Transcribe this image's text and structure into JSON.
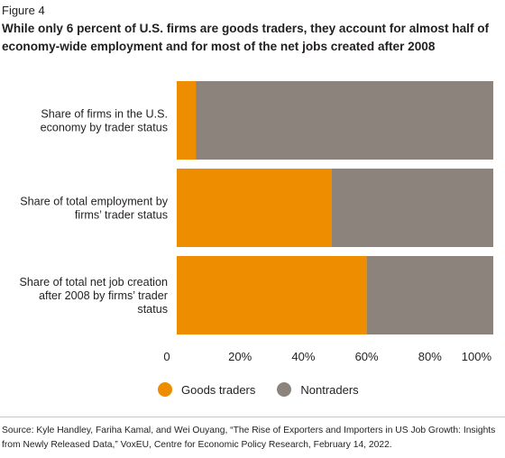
{
  "figure_label": "Figure 4",
  "title": "While only 6 percent of U.S. firms are goods traders, they account for almost half of economy-wide employment and for most of the net jobs created after 2008",
  "source": "Source: Kyle Handley, Fariha Kamal, and Wei Ouyang, “The Rise of Exporters and Importers in US Job Growth: Insights from Newly Released Data,” VoxEU, Centre for Economic Policy Research, February 14, 2022.",
  "colors": {
    "goods_traders": "#ee8d00",
    "nontraders": "#8c837d"
  },
  "chart_data": {
    "type": "bar",
    "orientation": "horizontal",
    "stacked": true,
    "categories": [
      [
        "Share of firms in the U.S.",
        "economy by trader status"
      ],
      [
        "Share of total employment by",
        "firms’ trader status"
      ],
      [
        "Share of total net job creation",
        "after 2008 by firms’ trader",
        "status"
      ]
    ],
    "series": [
      {
        "name": "Goods traders",
        "values": [
          6,
          49,
          60
        ]
      },
      {
        "name": "Nontraders",
        "values": [
          94,
          51,
          40
        ]
      }
    ],
    "xlim": [
      0,
      100
    ],
    "xticks": [
      "0",
      "20%",
      "40%",
      "60%",
      "80%",
      "100%"
    ],
    "grid": false,
    "legend_position": "bottom"
  }
}
